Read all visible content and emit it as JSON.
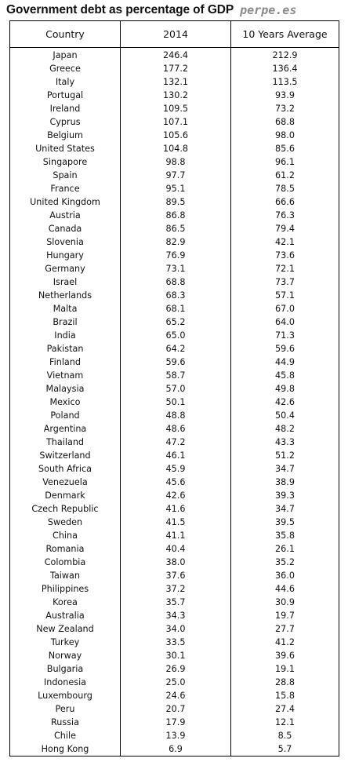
{
  "title": "Government debt as percentage of GDP",
  "brand": "perpe.es",
  "columns": [
    "Country",
    "2014",
    "10 Years Average"
  ],
  "chart_data": {
    "type": "table",
    "title": "Government debt as percentage of GDP",
    "columns": [
      "Country",
      "2014",
      "10 Years Average"
    ],
    "rows": [
      [
        "Japan",
        "246.4",
        "212.9"
      ],
      [
        "Greece",
        "177.2",
        "136.4"
      ],
      [
        "Italy",
        "132.1",
        "113.5"
      ],
      [
        "Portugal",
        "130.2",
        "93.9"
      ],
      [
        "Ireland",
        "109.5",
        "73.2"
      ],
      [
        "Cyprus",
        "107.1",
        "68.8"
      ],
      [
        "Belgium",
        "105.6",
        "98.0"
      ],
      [
        "United States",
        "104.8",
        "85.6"
      ],
      [
        "Singapore",
        "98.8",
        "96.1"
      ],
      [
        "Spain",
        "97.7",
        "61.2"
      ],
      [
        "France",
        "95.1",
        "78.5"
      ],
      [
        "United Kingdom",
        "89.5",
        "66.6"
      ],
      [
        "Austria",
        "86.8",
        "76.3"
      ],
      [
        "Canada",
        "86.5",
        "79.4"
      ],
      [
        "Slovenia",
        "82.9",
        "42.1"
      ],
      [
        "Hungary",
        "76.9",
        "73.6"
      ],
      [
        "Germany",
        "73.1",
        "72.1"
      ],
      [
        "Israel",
        "68.8",
        "73.7"
      ],
      [
        "Netherlands",
        "68.3",
        "57.1"
      ],
      [
        "Malta",
        "68.1",
        "67.0"
      ],
      [
        "Brazil",
        "65.2",
        "64.0"
      ],
      [
        "India",
        "65.0",
        "71.3"
      ],
      [
        "Pakistan",
        "64.2",
        "59.6"
      ],
      [
        "Finland",
        "59.6",
        "44.9"
      ],
      [
        "Vietnam",
        "58.7",
        "45.8"
      ],
      [
        "Malaysia",
        "57.0",
        "49.8"
      ],
      [
        "Mexico",
        "50.1",
        "42.6"
      ],
      [
        "Poland",
        "48.8",
        "50.4"
      ],
      [
        "Argentina",
        "48.6",
        "48.2"
      ],
      [
        "Thailand",
        "47.2",
        "43.3"
      ],
      [
        "Switzerland",
        "46.1",
        "51.2"
      ],
      [
        "South Africa",
        "45.9",
        "34.7"
      ],
      [
        "Venezuela",
        "45.6",
        "38.9"
      ],
      [
        "Denmark",
        "42.6",
        "39.3"
      ],
      [
        "Czech Republic",
        "41.6",
        "34.7"
      ],
      [
        "Sweden",
        "41.5",
        "39.5"
      ],
      [
        "China",
        "41.1",
        "35.8"
      ],
      [
        "Romania",
        "40.4",
        "26.1"
      ],
      [
        "Colombia",
        "38.0",
        "35.2"
      ],
      [
        "Taiwan",
        "37.6",
        "36.0"
      ],
      [
        "Philippines",
        "37.2",
        "44.6"
      ],
      [
        "Korea",
        "35.7",
        "30.9"
      ],
      [
        "Australia",
        "34.3",
        "19.7"
      ],
      [
        "New Zealand",
        "34.0",
        "27.7"
      ],
      [
        "Turkey",
        "33.5",
        "41.2"
      ],
      [
        "Norway",
        "30.1",
        "39.6"
      ],
      [
        "Bulgaria",
        "26.9",
        "19.1"
      ],
      [
        "Indonesia",
        "25.0",
        "28.8"
      ],
      [
        "Luxembourg",
        "24.6",
        "15.8"
      ],
      [
        "Peru",
        "20.7",
        "27.4"
      ],
      [
        "Russia",
        "17.9",
        "12.1"
      ],
      [
        "Chile",
        "13.9",
        "8.5"
      ],
      [
        "Hong Kong",
        "6.9",
        "5.7"
      ]
    ]
  }
}
